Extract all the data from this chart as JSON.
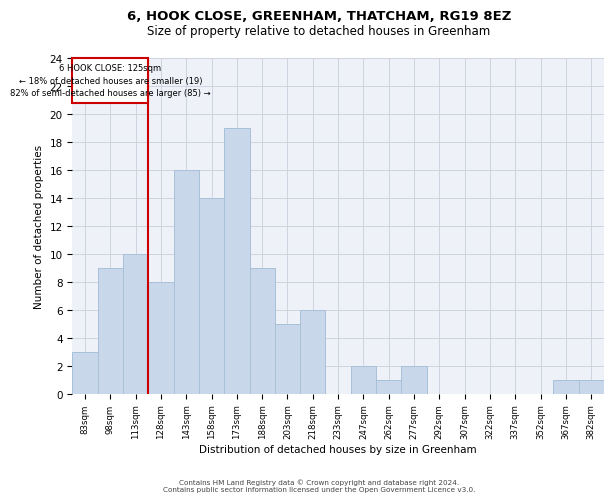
{
  "title": "6, HOOK CLOSE, GREENHAM, THATCHAM, RG19 8EZ",
  "subtitle": "Size of property relative to detached houses in Greenham",
  "xlabel": "Distribution of detached houses by size in Greenham",
  "ylabel": "Number of detached properties",
  "categories": [
    "83sqm",
    "98sqm",
    "113sqm",
    "128sqm",
    "143sqm",
    "158sqm",
    "173sqm",
    "188sqm",
    "203sqm",
    "218sqm",
    "233sqm",
    "247sqm",
    "262sqm",
    "277sqm",
    "292sqm",
    "307sqm",
    "322sqm",
    "337sqm",
    "352sqm",
    "367sqm",
    "382sqm"
  ],
  "values": [
    3,
    9,
    10,
    8,
    16,
    14,
    19,
    9,
    5,
    6,
    0,
    2,
    1,
    2,
    0,
    0,
    0,
    0,
    0,
    1,
    1
  ],
  "bar_color": "#c8d8ea",
  "bar_edge_color": "#a8c0d8",
  "vline_color": "#cc0000",
  "ylim": [
    0,
    24
  ],
  "yticks": [
    0,
    2,
    4,
    6,
    8,
    10,
    12,
    14,
    16,
    18,
    20,
    22,
    24
  ],
  "annotation_line1": "6 HOOK CLOSE: 125sqm",
  "annotation_line2": "← 18% of detached houses are smaller (19)",
  "annotation_line3": "82% of semi-detached houses are larger (85) →",
  "annotation_box_color": "#cc0000",
  "footer_line1": "Contains HM Land Registry data © Crown copyright and database right 2024.",
  "footer_line2": "Contains public sector information licensed under the Open Government Licence v3.0.",
  "background_color": "#eef2f8",
  "grid_color": "#c8d0dc"
}
